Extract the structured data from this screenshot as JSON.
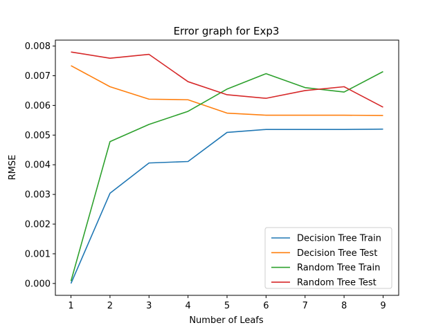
{
  "chart_data": {
    "type": "line",
    "title": "Error graph for Exp3",
    "xlabel": "Number of Leafs",
    "ylabel": "RMSE",
    "x": [
      1,
      2,
      3,
      4,
      5,
      6,
      7,
      8,
      9
    ],
    "xlim": [
      0.6,
      9.4
    ],
    "ylim": [
      -0.0004,
      0.0082
    ],
    "xticks": [
      1,
      2,
      3,
      4,
      5,
      6,
      7,
      8,
      9
    ],
    "yticks": [
      0.0,
      0.001,
      0.002,
      0.003,
      0.004,
      0.005,
      0.006,
      0.007,
      0.008
    ],
    "ytick_labels": [
      "0.000",
      "0.001",
      "0.002",
      "0.003",
      "0.004",
      "0.005",
      "0.006",
      "0.007",
      "0.008"
    ],
    "grid": false,
    "legend_position": "lower-right",
    "series": [
      {
        "name": "Decision Tree Train",
        "color": "#1f77b4",
        "values": [
          0.0,
          0.00304,
          0.00406,
          0.00411,
          0.00509,
          0.00519,
          0.00519,
          0.00519,
          0.0052
        ]
      },
      {
        "name": "Decision Tree Test",
        "color": "#ff7f0e",
        "values": [
          0.00734,
          0.00663,
          0.00621,
          0.00619,
          0.00574,
          0.00567,
          0.00567,
          0.00567,
          0.00566
        ]
      },
      {
        "name": "Random Tree Train",
        "color": "#2ca02c",
        "values": [
          8e-05,
          0.00478,
          0.00536,
          0.0058,
          0.00655,
          0.00707,
          0.0066,
          0.00645,
          0.00714
        ]
      },
      {
        "name": "Random Tree Test",
        "color": "#d62728",
        "values": [
          0.0078,
          0.00759,
          0.00772,
          0.0068,
          0.00636,
          0.00624,
          0.0065,
          0.00663,
          0.00594
        ]
      }
    ]
  }
}
